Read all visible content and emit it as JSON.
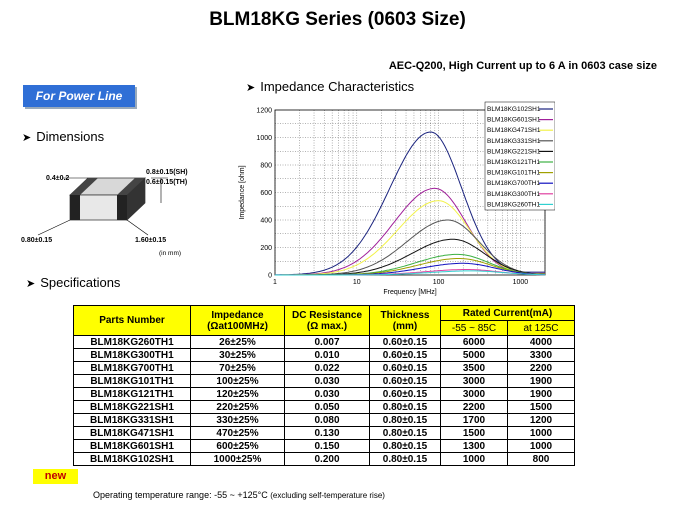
{
  "title": "BLM18KG Series (0603 Size)",
  "subtitle": "AEC-Q200, High Current up to 6 A in 0603 case size",
  "badge": "For Power Line",
  "sections": {
    "dimensions": "Dimensions",
    "impedance": "Impedance  Characteristics",
    "specifications": "Specifications"
  },
  "dimensions": {
    "top_left": "0.4±0.2",
    "right_1": "0.8±0.15(SH)",
    "right_2": "0.6±0.15(TH)",
    "bottom_left": "0.80±0.15",
    "bottom_right": "1.60±0.15",
    "unit": "(in mm)"
  },
  "chart_data": {
    "type": "line",
    "xlabel": "Frequency [MHz]",
    "ylabel": "Impedance [ohm]",
    "xscale": "log",
    "xlim": [
      1,
      2000
    ],
    "ylim": [
      0,
      1200
    ],
    "xticks": [
      "1",
      "10",
      "100",
      "1000"
    ],
    "yticks": [
      "0",
      "200",
      "400",
      "600",
      "800",
      "1000",
      "1200"
    ],
    "grid": true,
    "legend_position": "top-right",
    "series": [
      {
        "name": "BLM18KG102SH1",
        "color": "#1a237e",
        "peak_f": 80,
        "peak_z": 1040
      },
      {
        "name": "BLM18KG601SH1",
        "color": "#a0209a",
        "peak_f": 90,
        "peak_z": 630
      },
      {
        "name": "BLM18KG471SH1",
        "color": "#f2f24a",
        "peak_f": 100,
        "peak_z": 540
      },
      {
        "name": "BLM18KG331SH1",
        "color": "#555555",
        "peak_f": 130,
        "peak_z": 400
      },
      {
        "name": "BLM18KG221SH1",
        "color": "#111111",
        "peak_f": 150,
        "peak_z": 260
      },
      {
        "name": "BLM18KG121TH1",
        "color": "#3cb043",
        "peak_f": 170,
        "peak_z": 150
      },
      {
        "name": "BLM18KG101TH1",
        "color": "#a0a000",
        "peak_f": 180,
        "peak_z": 120
      },
      {
        "name": "BLM18KG700TH1",
        "color": "#1010c0",
        "peak_f": 200,
        "peak_z": 85
      },
      {
        "name": "BLM18KG300TH1",
        "color": "#e040a0",
        "peak_f": 220,
        "peak_z": 40
      },
      {
        "name": "BLM18KG260TH1",
        "color": "#30d0d0",
        "peak_f": 250,
        "peak_z": 30
      }
    ]
  },
  "table": {
    "headers": {
      "part": "Parts Number",
      "impedance_1": "Impedance",
      "impedance_2": "(Ωat100MHz)",
      "dcr_1": "DC Resistance",
      "dcr_2": "(Ω max.)",
      "thk_1": "Thickness",
      "thk_2": "(mm)",
      "rated": "Rated Current(mA)",
      "rated_a": "-55 ~ 85C",
      "rated_b": "at 125C"
    },
    "rows": [
      [
        "BLM18KG260TH1",
        "26±25%",
        "0.007",
        "0.60±0.15",
        "6000",
        "4000"
      ],
      [
        "BLM18KG300TH1",
        "30±25%",
        "0.010",
        "0.60±0.15",
        "5000",
        "3300"
      ],
      [
        "BLM18KG700TH1",
        "70±25%",
        "0.022",
        "0.60±0.15",
        "3500",
        "2200"
      ],
      [
        "BLM18KG101TH1",
        "100±25%",
        "0.030",
        "0.60±0.15",
        "3000",
        "1900"
      ],
      [
        "BLM18KG121TH1",
        "120±25%",
        "0.030",
        "0.60±0.15",
        "3000",
        "1900"
      ],
      [
        "BLM18KG221SH1",
        "220±25%",
        "0.050",
        "0.80±0.15",
        "2200",
        "1500"
      ],
      [
        "BLM18KG331SH1",
        "330±25%",
        "0.080",
        "0.80±0.15",
        "1700",
        "1200"
      ],
      [
        "BLM18KG471SH1",
        "470±25%",
        "0.130",
        "0.80±0.15",
        "1500",
        "1000"
      ],
      [
        "BLM18KG601SH1",
        "600±25%",
        "0.150",
        "0.80±0.15",
        "1300",
        "1000"
      ],
      [
        "BLM18KG102SH1",
        "1000±25%",
        "0.200",
        "0.80±0.15",
        "1000",
        "800"
      ]
    ]
  },
  "new_label": "new",
  "footnote": "Operating  temperature  range:  -55 ~ +125°C",
  "footnote_small": "(excluding self-temperature rise)"
}
